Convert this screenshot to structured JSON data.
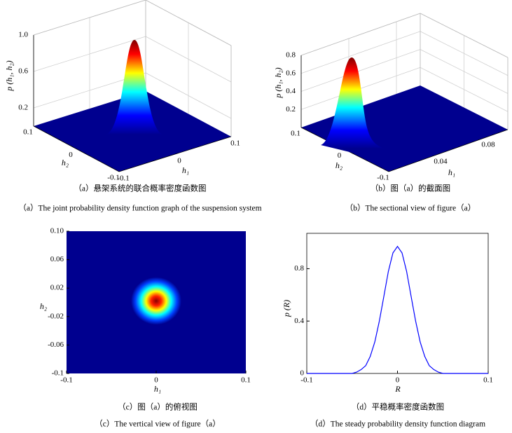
{
  "chart_data": [
    {
      "type": "surface3d",
      "zlabel": "p (h₁, h₂)",
      "xlabel": "h₁",
      "ylabel": "h₂",
      "xlim": [
        -0.1,
        0.1
      ],
      "xticks": [
        -0.1,
        0,
        0.1
      ],
      "ylim": [
        -0.1,
        0.1
      ],
      "yticks": [
        -0.1,
        0,
        0.1
      ],
      "zlim": [
        0,
        1
      ],
      "zticks": [
        0.2,
        0.6,
        {
          "value": 1,
          "label": "1.0"
        }
      ],
      "caption_cn": "（a）悬架系统的联合概率密度函数图",
      "caption_en": "（a）The joint probability density function graph of the suspension system"
    },
    {
      "type": "surface3d",
      "zlabel": "p (h₁, h₂)",
      "xlabel": "h₁",
      "ylabel": "h₂",
      "xlim": [
        0,
        0.1
      ],
      "xticks": [
        0.04,
        0.08
      ],
      "ylim": [
        -0.1,
        0.1
      ],
      "yticks": [
        -0.1,
        0,
        0.1
      ],
      "zlim": [
        0,
        0.8
      ],
      "zticks": [
        0.2,
        0.4,
        0.6,
        0.8
      ],
      "caption_cn": "（b）图（a）的截面图",
      "caption_en": "（b）The sectional view of figure（a）"
    },
    {
      "type": "heatmap",
      "xlabel": "h₁",
      "ylabel": "h₂",
      "xlim": [
        -0.1,
        0.1
      ],
      "xticks": [
        -0.1,
        0,
        0.1
      ],
      "ylim": [
        -0.1,
        0.1
      ],
      "yticks": [
        -0.1,
        -0.06,
        -0.02,
        0.02,
        0.06,
        {
          "value": 0.1,
          "label": "0.10"
        }
      ],
      "caption_cn": "（c）图（a）的俯视图",
      "caption_en": "（c）The vertical view of figure（a）"
    },
    {
      "type": "line",
      "xlabel": "R",
      "ylabel": "p (R)",
      "color": "#0000ff",
      "x": [
        -0.1,
        -0.05,
        -0.045,
        -0.04,
        -0.035,
        -0.03,
        -0.025,
        -0.02,
        -0.015,
        -0.01,
        -0.005,
        0,
        0.005,
        0.01,
        0.015,
        0.02,
        0.025,
        0.03,
        0.035,
        0.04,
        0.045,
        0.05,
        0.1
      ],
      "values": [
        0,
        0,
        0.01,
        0.03,
        0.06,
        0.13,
        0.24,
        0.4,
        0.59,
        0.78,
        0.92,
        0.97,
        0.92,
        0.78,
        0.59,
        0.4,
        0.24,
        0.13,
        0.06,
        0.03,
        0.01,
        0,
        0
      ],
      "xlim": [
        -0.1,
        0.1
      ],
      "xticks": [
        -0.1,
        0,
        0.1
      ],
      "ylim": [
        0,
        1.07
      ],
      "yticks": [
        0,
        0.4,
        0.8
      ],
      "caption_cn": "（d）平稳概率密度函数图",
      "caption_en": "（d）The steady probability density function diagram"
    }
  ]
}
